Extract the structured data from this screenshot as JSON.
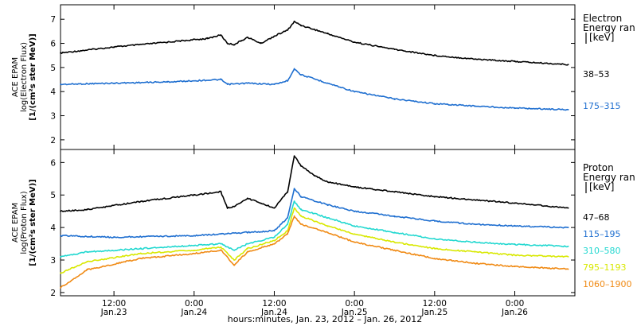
{
  "colors": {
    "black": "#000000",
    "blue": "#1f6fd0",
    "cyan": "#22d8d0",
    "yellow": "#d8e800",
    "orange": "#f08a14",
    "axis": "#000000"
  },
  "x_axis": {
    "label": "hours:minutes, Jan. 23, 2012 – Jan. 26, 2012",
    "range": [
      "2012-01-23 04:00",
      "2012-01-26 09:00"
    ],
    "ticks": [
      {
        "time": "2012-01-23 12:00",
        "line1": "12:00",
        "line2": "Jan.23"
      },
      {
        "time": "2012-01-24 00:00",
        "line1": "0:00",
        "line2": "Jan.24"
      },
      {
        "time": "2012-01-24 12:00",
        "line1": "12:00",
        "line2": "Jan.24"
      },
      {
        "time": "2012-01-25 00:00",
        "line1": "0:00",
        "line2": "Jan.25"
      },
      {
        "time": "2012-01-25 12:00",
        "line1": "12:00",
        "line2": "Jan.25"
      },
      {
        "time": "2012-01-26 00:00",
        "line1": "0:00",
        "line2": "Jan.26"
      }
    ]
  },
  "chart_data": [
    {
      "type": "line",
      "panel": "electron",
      "ylabel_lines": [
        "ACE EPAM",
        "log(Electron Flux)",
        "[1/(cm²s ster MeV)]"
      ],
      "ylim": [
        1.6,
        7.6
      ],
      "yticks": [
        2,
        3,
        4,
        5,
        6,
        7
      ],
      "legend_title_lines": [
        "Electron",
        "Energy ran",
        "[keV]"
      ],
      "legend_placement": "right",
      "grid": false,
      "x_unit": "time",
      "series": [
        {
          "name": "38–53",
          "color": "#000000",
          "x": [
            "2012-01-23 04:00",
            "2012-01-23 12:00",
            "2012-01-23 20:00",
            "2012-01-24 02:00",
            "2012-01-24 04:00",
            "2012-01-24 05:00",
            "2012-01-24 06:00",
            "2012-01-24 07:00",
            "2012-01-24 08:00",
            "2012-01-24 10:00",
            "2012-01-24 12:00",
            "2012-01-24 14:00",
            "2012-01-24 15:00",
            "2012-01-24 16:00",
            "2012-01-24 20:00",
            "2012-01-25 00:00",
            "2012-01-25 06:00",
            "2012-01-25 12:00",
            "2012-01-25 18:00",
            "2012-01-26 00:00",
            "2012-01-26 08:00"
          ],
          "values": [
            5.6,
            5.85,
            6.05,
            6.2,
            6.35,
            6.0,
            5.95,
            6.1,
            6.25,
            6.0,
            6.3,
            6.55,
            6.9,
            6.75,
            6.4,
            6.05,
            5.75,
            5.5,
            5.35,
            5.25,
            5.12
          ]
        },
        {
          "name": "175–315",
          "color": "#1f6fd0",
          "x": [
            "2012-01-23 04:00",
            "2012-01-23 12:00",
            "2012-01-23 20:00",
            "2012-01-24 04:00",
            "2012-01-24 05:00",
            "2012-01-24 08:00",
            "2012-01-24 12:00",
            "2012-01-24 14:00",
            "2012-01-24 15:00",
            "2012-01-24 16:00",
            "2012-01-24 20:00",
            "2012-01-25 00:00",
            "2012-01-25 06:00",
            "2012-01-25 12:00",
            "2012-01-25 18:00",
            "2012-01-26 00:00",
            "2012-01-26 08:00"
          ],
          "values": [
            4.3,
            4.35,
            4.4,
            4.5,
            4.3,
            4.35,
            4.3,
            4.45,
            4.95,
            4.7,
            4.35,
            4.0,
            3.7,
            3.5,
            3.4,
            3.32,
            3.25
          ]
        }
      ]
    },
    {
      "type": "line",
      "panel": "proton",
      "ylabel_lines": [
        "ACE EPAM",
        "log(Proton Flux)",
        "[1/(cm²s ster MeV)]"
      ],
      "ylim": [
        1.9,
        6.4
      ],
      "yticks": [
        2,
        3,
        4,
        5,
        6
      ],
      "legend_title_lines": [
        "Proton",
        "Energy ran",
        "[keV]"
      ],
      "legend_placement": "right",
      "grid": false,
      "x_unit": "time",
      "series": [
        {
          "name": "47–68",
          "color": "#000000",
          "x": [
            "2012-01-23 04:00",
            "2012-01-23 08:00",
            "2012-01-23 16:00",
            "2012-01-24 00:00",
            "2012-01-24 04:00",
            "2012-01-24 05:00",
            "2012-01-24 06:00",
            "2012-01-24 08:00",
            "2012-01-24 10:00",
            "2012-01-24 12:00",
            "2012-01-24 14:00",
            "2012-01-24 15:00",
            "2012-01-24 16:00",
            "2012-01-24 18:00",
            "2012-01-24 20:00",
            "2012-01-25 00:00",
            "2012-01-25 06:00",
            "2012-01-25 12:00",
            "2012-01-25 18:00",
            "2012-01-26 00:00",
            "2012-01-26 08:00"
          ],
          "values": [
            4.5,
            4.55,
            4.8,
            5.0,
            5.1,
            4.6,
            4.65,
            4.9,
            4.75,
            4.6,
            5.1,
            6.2,
            5.9,
            5.6,
            5.4,
            5.25,
            5.1,
            4.95,
            4.85,
            4.75,
            4.6
          ]
        },
        {
          "name": "115–195",
          "color": "#1f6fd0",
          "x": [
            "2012-01-23 04:00",
            "2012-01-23 12:00",
            "2012-01-24 00:00",
            "2012-01-24 04:00",
            "2012-01-24 08:00",
            "2012-01-24 12:00",
            "2012-01-24 14:00",
            "2012-01-24 15:00",
            "2012-01-24 16:00",
            "2012-01-24 20:00",
            "2012-01-25 00:00",
            "2012-01-25 06:00",
            "2012-01-25 12:00",
            "2012-01-25 18:00",
            "2012-01-26 00:00",
            "2012-01-26 08:00"
          ],
          "values": [
            3.75,
            3.7,
            3.75,
            3.8,
            3.85,
            3.9,
            4.3,
            5.2,
            4.95,
            4.7,
            4.5,
            4.35,
            4.2,
            4.1,
            4.05,
            4.0
          ]
        },
        {
          "name": "310–580",
          "color": "#22d8d0",
          "x": [
            "2012-01-23 04:00",
            "2012-01-23 08:00",
            "2012-01-23 16:00",
            "2012-01-24 00:00",
            "2012-01-24 04:00",
            "2012-01-24 06:00",
            "2012-01-24 08:00",
            "2012-01-24 12:00",
            "2012-01-24 14:00",
            "2012-01-24 15:00",
            "2012-01-24 16:00",
            "2012-01-24 20:00",
            "2012-01-25 00:00",
            "2012-01-25 06:00",
            "2012-01-25 12:00",
            "2012-01-25 18:00",
            "2012-01-26 00:00",
            "2012-01-26 08:00"
          ],
          "values": [
            3.1,
            3.25,
            3.35,
            3.45,
            3.5,
            3.3,
            3.5,
            3.7,
            4.1,
            4.8,
            4.55,
            4.3,
            4.05,
            3.85,
            3.65,
            3.55,
            3.48,
            3.42
          ]
        },
        {
          "name": "795–1193",
          "color": "#d8e800",
          "x": [
            "2012-01-23 04:00",
            "2012-01-23 08:00",
            "2012-01-23 16:00",
            "2012-01-24 00:00",
            "2012-01-24 04:00",
            "2012-01-24 06:00",
            "2012-01-24 08:00",
            "2012-01-24 12:00",
            "2012-01-24 14:00",
            "2012-01-24 15:00",
            "2012-01-24 16:00",
            "2012-01-24 20:00",
            "2012-01-25 00:00",
            "2012-01-25 06:00",
            "2012-01-25 12:00",
            "2012-01-25 18:00",
            "2012-01-26 00:00",
            "2012-01-26 08:00"
          ],
          "values": [
            2.6,
            2.95,
            3.2,
            3.3,
            3.4,
            3.0,
            3.35,
            3.6,
            3.9,
            4.6,
            4.35,
            4.05,
            3.8,
            3.55,
            3.35,
            3.25,
            3.15,
            3.1
          ]
        },
        {
          "name": "1060–1900",
          "color": "#f08a14",
          "x": [
            "2012-01-23 04:00",
            "2012-01-23 08:00",
            "2012-01-23 16:00",
            "2012-01-24 00:00",
            "2012-01-24 04:00",
            "2012-01-24 06:00",
            "2012-01-24 08:00",
            "2012-01-24 12:00",
            "2012-01-24 14:00",
            "2012-01-24 15:00",
            "2012-01-24 16:00",
            "2012-01-24 20:00",
            "2012-01-25 00:00",
            "2012-01-25 06:00",
            "2012-01-25 12:00",
            "2012-01-25 18:00",
            "2012-01-26 00:00",
            "2012-01-26 08:00"
          ],
          "values": [
            2.15,
            2.7,
            3.05,
            3.2,
            3.3,
            2.85,
            3.25,
            3.5,
            3.8,
            4.35,
            4.1,
            3.85,
            3.55,
            3.3,
            3.05,
            2.9,
            2.8,
            2.72
          ]
        }
      ]
    }
  ]
}
